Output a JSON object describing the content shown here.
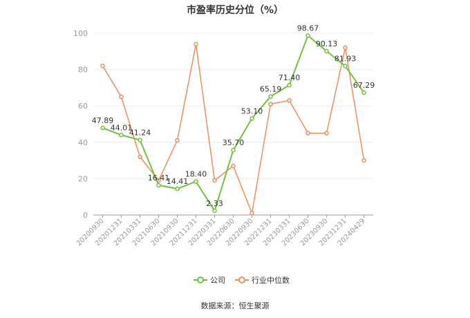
{
  "chart_data": {
    "type": "line",
    "title": "市盈率历史分位（%）",
    "categories": [
      "20200930",
      "20201231",
      "20210331",
      "20210630",
      "20210930",
      "20211231",
      "20220331",
      "20220630",
      "20220930",
      "20221231",
      "20230331",
      "20230630",
      "20230930",
      "20231231",
      "20240429"
    ],
    "series": [
      {
        "name": "公司",
        "color": "#6cc33a",
        "values": [
          47.89,
          44.01,
          41.24,
          16.41,
          14.41,
          18.4,
          2.33,
          35.7,
          53.1,
          65.19,
          71.4,
          98.67,
          90.13,
          81.93,
          67.29
        ],
        "labels": [
          "47.89",
          "44.01",
          "41.24",
          "16.41",
          "14.41",
          "18.40",
          "2.33",
          "35.70",
          "53.10",
          "65.19",
          "71.40",
          "98.67",
          "90.13",
          "81.93",
          "67.29"
        ]
      },
      {
        "name": "行业中位数",
        "color": "#f08b5a",
        "values": [
          82,
          65,
          32,
          19,
          41,
          94,
          19,
          27,
          1,
          61,
          63,
          45,
          45,
          92,
          30
        ]
      }
    ],
    "ylim": [
      0,
      100
    ],
    "yticks": [
      0,
      20,
      40,
      60,
      80,
      100
    ],
    "grid": true,
    "legend": "bottom",
    "source": "数据来源：恒生聚源"
  }
}
